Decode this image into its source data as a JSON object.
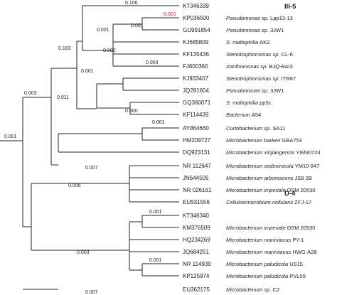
{
  "tree": {
    "groups": {
      "group_a": "III-5",
      "group_b": "D-4"
    },
    "leaves": [
      {
        "acc": "KT346339",
        "name": "",
        "strain": ""
      },
      {
        "acc": "KP036500",
        "name": "Pseudomonas sp.",
        "strain": "Lpp13-13"
      },
      {
        "acc": "GU991854",
        "name": "Pseudomonas sp.",
        "strain": "3JW1"
      },
      {
        "acc": "KJ685809",
        "name": "S. maltophilia",
        "strain": "AK2"
      },
      {
        "acc": "KF135436",
        "name": "Stenotrophomonas sp.",
        "strain": "CL-6"
      },
      {
        "acc": "FJ600360",
        "name": "Xanthomonas sp.",
        "strain": "BJQ-BAI3"
      },
      {
        "acc": "KJ933407",
        "name": "Stenotrophomonas sp.",
        "strain": "ITR87"
      },
      {
        "acc": "JQ291604",
        "name": "Pseudomonas sp.",
        "strain": "3JW1"
      },
      {
        "acc": "GQ360071",
        "name": "S. maltophilia",
        "strain": "pp5c"
      },
      {
        "acc": "KF114439",
        "name": "Bacterium",
        "strain": "A54"
      },
      {
        "acc": "AY864660",
        "name": "Curtobacterium sp.",
        "strain": "SA11"
      },
      {
        "acc": "HM209727",
        "name": "Microbacterium barkeri",
        "strain": "GBA753"
      },
      {
        "acc": "DQ923131",
        "name": "Microbacterium xinjiangensis",
        "strain": "YIM90724"
      },
      {
        "acc": "NR 112647",
        "name": "Microbacterium sediminicola",
        "strain": "YM10-847"
      },
      {
        "acc": "JN644505",
        "name": "Microbacterium arborescens",
        "strain": "JS8 2B"
      },
      {
        "acc": "NR 026161",
        "name": "Microbacterium imperiale",
        "strain": "DSM 20530"
      },
      {
        "acc": "EU931556",
        "name": "Cellulosimicrobium cellulans",
        "strain": "ZFJ-17"
      },
      {
        "acc": "KT346340",
        "name": "",
        "strain": ""
      },
      {
        "acc": "KM376509",
        "name": "Microbacterium imperiale",
        "strain": "DSM 20530"
      },
      {
        "acc": "HQ234269",
        "name": "Microbacterium mariniiacus",
        "strain": "PY-1"
      },
      {
        "acc": "JQ684251",
        "name": "Microbacterium mariniiacus",
        "strain": "HWG-A28"
      },
      {
        "acc": "NR 114939",
        "name": "Microbacterium paludicola",
        "strain": "US15"
      },
      {
        "acc": "KP125974",
        "name": "Microbacterium paludicola",
        "strain": "PVL09"
      },
      {
        "acc": "EU362175",
        "name": "Microbacterium sp.",
        "strain": "C2"
      }
    ],
    "branch_lengths": {
      "kt346339": "0.106",
      "kp036500": "-0.001",
      "pseudo_pair": "0.001",
      "gu_kj_clade": "0.001",
      "upper_stem": "0.183",
      "kf135436_clade": "0.000",
      "fj600360": "0.003",
      "kj_jq_clade": "0.001",
      "gq_kf_clade": "0.011",
      "kf114439": "0.000",
      "iii5_stem": "0.003",
      "curto_pair": "0.001",
      "microbacterium_a": "0.007",
      "root": "0.001",
      "microbacterium_b": "0.006",
      "d4_pair": "0.001",
      "d4_stem": "0.003",
      "paludicola_pair": "0.001",
      "ec2": "0.007"
    }
  }
}
